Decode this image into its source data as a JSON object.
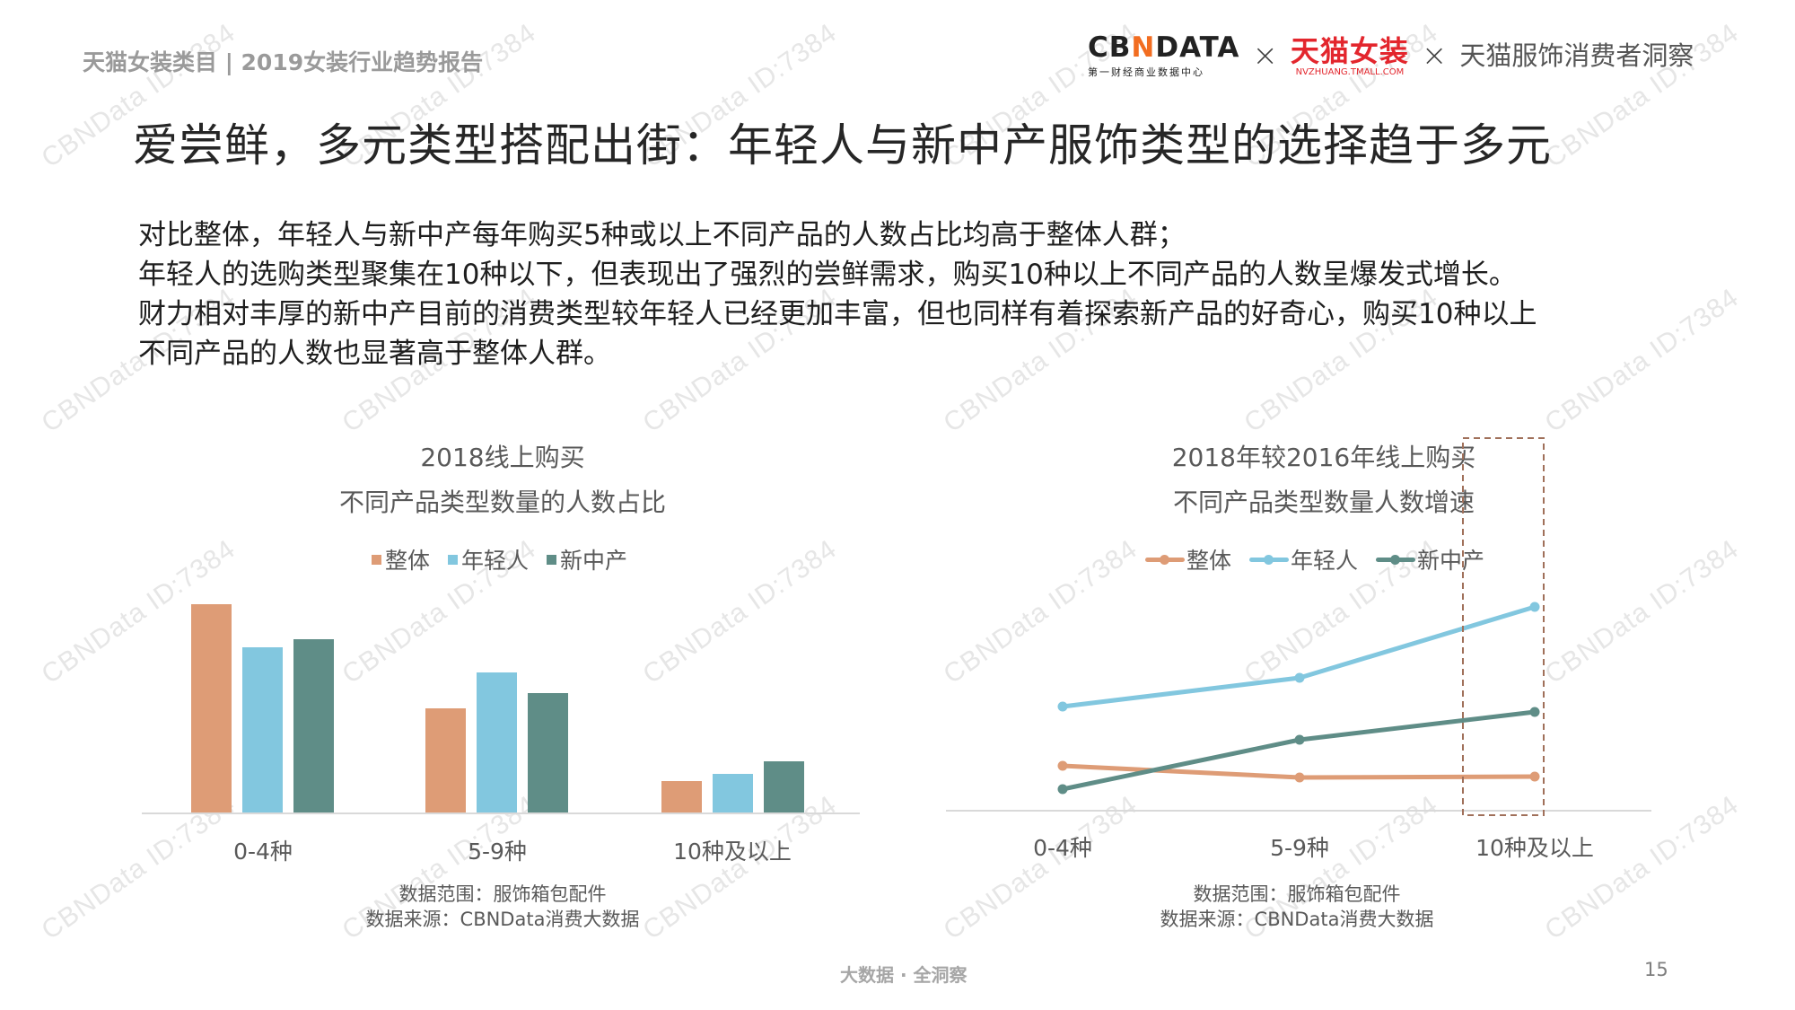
{
  "header": {
    "report_label": "天猫女装类目 | 2019女装行业趋势报告",
    "cbn_logo": {
      "word_pre": "CB",
      "word_n": "N",
      "word_post": "DATA",
      "subtitle": "第一财经商业数据中心"
    },
    "times_symbol": "×",
    "tmall_logo": {
      "word": "天猫女装",
      "subtitle": "NVZHUANG.TMALL.COM"
    },
    "partner_text": "天猫服饰消费者洞察"
  },
  "title": "爱尝鲜，多元类型搭配出街：年轻人与新中产服饰类型的选择趋于多元",
  "summary": [
    "对比整体，年轻人与新中产每年购买5种或以上不同产品的人数占比均高于整体人群；",
    "年轻人的选购类型聚集在10种以下，但表现出了强烈的尝鲜需求，购买10种以上不同产品的人数呈爆发式增长。",
    "财力相对丰厚的新中产目前的消费类型较年轻人已经更加丰富，但也同样有着探索新产品的好奇心，购买10种以上",
    "不同产品的人数也显著高于整体人群。"
  ],
  "colors": {
    "overall": "#de9c76",
    "young": "#82c7df",
    "middle": "#5f8d87",
    "highlight_box": "#a0705a"
  },
  "left_chart": {
    "title_line1": "2018线上购买",
    "title_line2": "不同产品类型数量的人数占比",
    "legend": [
      "整体",
      "年轻人",
      "新中产"
    ],
    "categories": [
      "0-4种",
      "5-9种",
      "10种及以上"
    ],
    "note_scope": "数据范围：服饰箱包配件",
    "note_source": "数据来源：CBNData消费大数据"
  },
  "right_chart": {
    "title_line1": "2018年较2016年线上购买",
    "title_line2": "不同产品类型数量人数增速",
    "legend": [
      "整体",
      "年轻人",
      "新中产"
    ],
    "categories": [
      "0-4种",
      "5-9种",
      "10种及以上"
    ],
    "note_scope": "数据范围：服饰箱包配件",
    "note_source": "数据来源：CBNData消费大数据"
  },
  "chart_data": [
    {
      "type": "bar",
      "title": "2018线上购买 不同产品类型数量的人数占比",
      "categories": [
        "0-4种",
        "5-9种",
        "10种及以上"
      ],
      "series": [
        {
          "name": "整体",
          "values": [
            60.6,
            30.3,
            9.1
          ],
          "color": "#de9c76"
        },
        {
          "name": "年轻人",
          "values": [
            48.0,
            40.7,
            11.3
          ],
          "color": "#82c7df"
        },
        {
          "name": "新中产",
          "values": [
            50.3,
            34.7,
            15.0
          ],
          "color": "#5f8d87"
        }
      ],
      "xlabel": "",
      "ylabel": "人数占比 (%, estimated, no axis shown)",
      "ylim": [
        0,
        65
      ],
      "grid": false,
      "legend_position": "top"
    },
    {
      "type": "line",
      "title": "2018年较2016年线上购买 不同产品类型数量人数增速",
      "categories": [
        "0-4种",
        "5-9种",
        "10种及以上"
      ],
      "series": [
        {
          "name": "整体",
          "values": [
            50,
            37,
            38
          ],
          "color": "#de9c76"
        },
        {
          "name": "年轻人",
          "values": [
            116,
            148,
            227
          ],
          "color": "#82c7df"
        },
        {
          "name": "新中产",
          "values": [
            24,
            79,
            110
          ],
          "color": "#5f8d87"
        }
      ],
      "xlabel": "",
      "ylabel": "人数增速 (relative units, estimated, no axis shown)",
      "ylim": [
        0,
        240
      ],
      "grid": false,
      "legend_position": "top",
      "annotations": [
        {
          "type": "dashed-box",
          "target": "10种及以上"
        }
      ]
    }
  ],
  "footer": {
    "slogan": "大数据 · 全洞察",
    "page_number": "15"
  },
  "watermark_text": "CBNData ID:7384"
}
